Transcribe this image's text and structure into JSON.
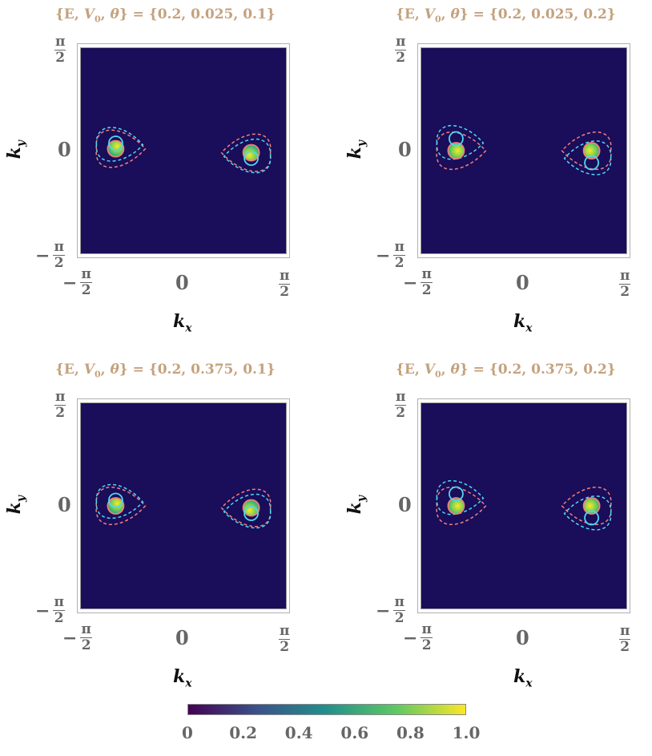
{
  "panels": [
    {
      "title_prefix": "{E, ",
      "title_v": "V",
      "title_v_sub": "0",
      "title_theta": "θ",
      "title_values": "} = {0.2, 0.025, 0.1}",
      "V0": 0.025,
      "theta": 0.1
    },
    {
      "title_prefix": "{E, ",
      "title_v": "V",
      "title_v_sub": "0",
      "title_theta": "θ",
      "title_values": "} = {0.2, 0.025, 0.2}",
      "V0": 0.025,
      "theta": 0.2
    },
    {
      "title_prefix": "{E, ",
      "title_v": "V",
      "title_v_sub": "0",
      "title_theta": "θ",
      "title_values": "} = {0.2, 0.375, 0.1}",
      "V0": 0.375,
      "theta": 0.1
    },
    {
      "title_prefix": "{E, ",
      "title_v": "V",
      "title_v_sub": "0",
      "title_theta": "θ",
      "title_values": "} = {0.2, 0.375, 0.2}",
      "V0": 0.375,
      "theta": 0.2
    }
  ],
  "axes": {
    "xlabel": "k",
    "xlabel_sub": "x",
    "ylabel": "k",
    "ylabel_sub": "y",
    "tick_neg": "−",
    "tick_num": "π",
    "tick_den": "2",
    "tick_zero": "0",
    "xlim": [
      "-π/2",
      "π/2"
    ],
    "ylim": [
      "-π/2",
      "π/2"
    ]
  },
  "colorbar": {
    "ticks": [
      "0",
      "0.2",
      "0.4",
      "0.6",
      "0.8",
      "1.0"
    ],
    "range": [
      0,
      1.0
    ],
    "colormap": "viridis"
  },
  "colors": {
    "background": "#1a0d5a",
    "title": "#c4a27e",
    "cyan": "#4fd8f0",
    "salmon": "#f08078"
  },
  "chart_data": [
    {
      "type": "heatmap",
      "title": "{E, V0, θ} = {0.2, 0.025, 0.1}",
      "xlabel": "kx",
      "ylabel": "ky",
      "xlim": [
        -1.5708,
        1.5708
      ],
      "ylim": [
        -1.5708,
        1.5708
      ],
      "hotspots": [
        {
          "x": -1.03,
          "y": 0.03,
          "peak": 1.0
        },
        {
          "x": 1.03,
          "y": -0.03,
          "peak": 1.0
        }
      ]
    },
    {
      "type": "heatmap",
      "title": "{E, V0, θ} = {0.2, 0.025, 0.2}",
      "xlabel": "kx",
      "ylabel": "ky",
      "xlim": [
        -1.5708,
        1.5708
      ],
      "ylim": [
        -1.5708,
        1.5708
      ],
      "hotspots": [
        {
          "x": -1.03,
          "y": 0.0,
          "peak": 0.8
        },
        {
          "x": 1.03,
          "y": 0.0,
          "peak": 0.8
        }
      ]
    },
    {
      "type": "heatmap",
      "title": "{E, V0, θ} = {0.2, 0.375, 0.1}",
      "xlabel": "kx",
      "ylabel": "ky",
      "xlim": [
        -1.5708,
        1.5708
      ],
      "ylim": [
        -1.5708,
        1.5708
      ],
      "hotspots": [
        {
          "x": -1.03,
          "y": 0.0,
          "peak": 0.9
        },
        {
          "x": 1.03,
          "y": -0.03,
          "peak": 0.9
        }
      ]
    },
    {
      "type": "heatmap",
      "title": "{E, V0, θ} = {0.2, 0.375, 0.2}",
      "xlabel": "kx",
      "ylabel": "ky",
      "xlim": [
        -1.5708,
        1.5708
      ],
      "ylim": [
        -1.5708,
        1.5708
      ],
      "hotspots": [
        {
          "x": -1.03,
          "y": 0.0,
          "peak": 0.7
        },
        {
          "x": 1.03,
          "y": 0.0,
          "peak": 0.7
        }
      ]
    }
  ]
}
